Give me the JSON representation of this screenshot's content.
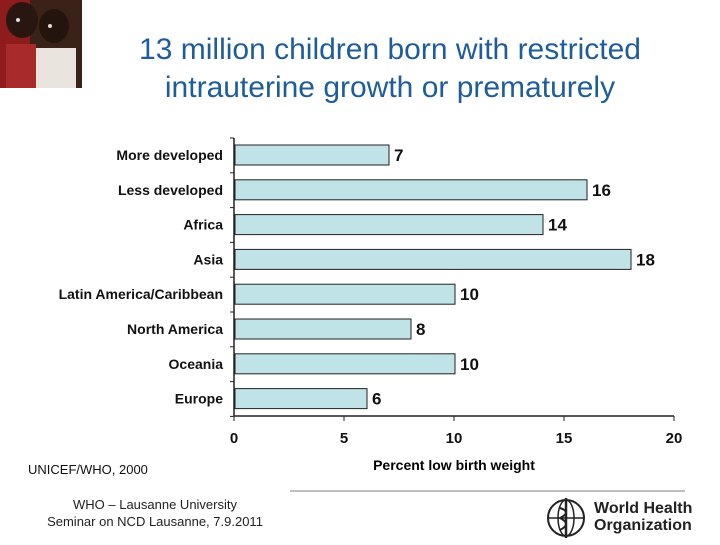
{
  "slide": {
    "title_line1": "13 million children born with restricted",
    "title_line2": "intrauterine growth or prematurely",
    "source": "UNICEF/WHO, 2000",
    "footer_line1": "WHO – Lausanne University",
    "footer_line2": "Seminar on NCD Lausanne, 7.9.2011",
    "logo_line1": "World Health",
    "logo_line2": "Organization"
  },
  "colors": {
    "title": "#1f5c9a",
    "bar_fill": "#bfe3e6",
    "bar_stroke": "#222222"
  },
  "chart_data": {
    "type": "bar",
    "orientation": "horizontal",
    "title": "",
    "categories": [
      "More developed",
      "Less developed",
      "Africa",
      "Asia",
      "Latin America/Caribbean",
      "North America",
      "Oceania",
      "Europe"
    ],
    "values": [
      7,
      16,
      14,
      18,
      10,
      8,
      10,
      6
    ],
    "xlabel": "Percent low birth weight",
    "ylabel": "",
    "xlim": [
      0,
      20
    ],
    "xticks": [
      0,
      5,
      10,
      15,
      20
    ],
    "grid": false,
    "legend": "none"
  }
}
